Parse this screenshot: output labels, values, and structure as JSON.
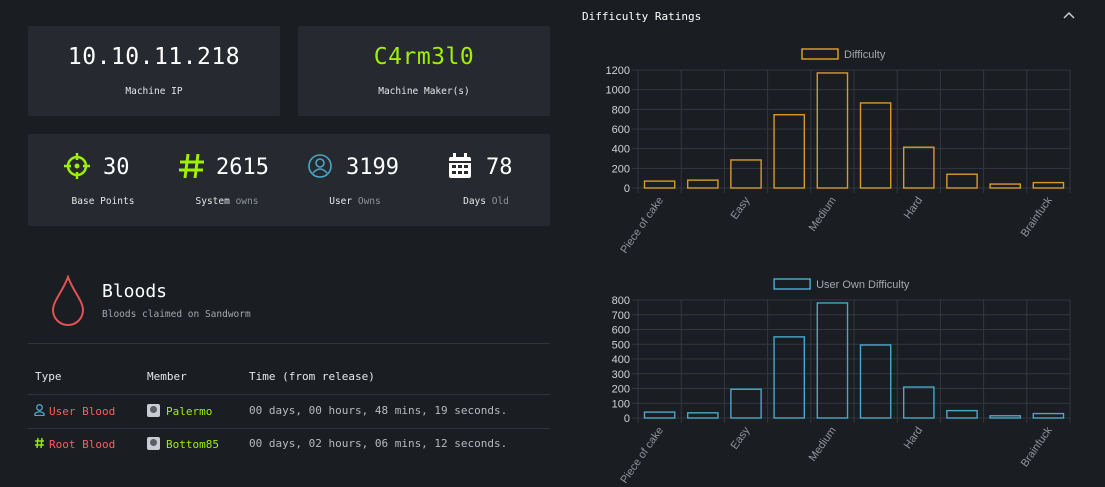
{
  "machine": {
    "ip": "10.10.11.218",
    "ip_label": "Machine IP",
    "maker": "C4rm3l0",
    "maker_label": "Machine Maker(s)"
  },
  "stats": {
    "base_points": {
      "value": "30",
      "label": "Base Points"
    },
    "system": {
      "value": "2615",
      "label": "System",
      "sub": "owns"
    },
    "user": {
      "value": "3199",
      "label": "User",
      "sub": "Owns"
    },
    "days": {
      "value": "78",
      "label": "Days",
      "sub": "Old"
    }
  },
  "bloods": {
    "title": "Bloods",
    "subtitle": "Bloods claimed on Sandworm",
    "columns": [
      "Type",
      "Member",
      "Time (from release)"
    ],
    "rows": [
      {
        "type": "User Blood",
        "member": "Palermo",
        "time": "00 days, 00 hours, 48 mins, 19 seconds."
      },
      {
        "type": "Root Blood",
        "member": "Bottom85",
        "time": "00 days, 02 hours, 06 mins, 12 seconds."
      }
    ]
  },
  "difficulty_panel": {
    "title": "Difficulty Ratings",
    "collapse_icon": "chevron-up-icon"
  },
  "colors": {
    "accent_green": "#9fef00",
    "blood_red": "#ff5c5c",
    "difficulty_series": "#d59c2c",
    "user_series": "#4aa7c9"
  },
  "chart_data": [
    {
      "type": "bar",
      "legend": "Difficulty",
      "categories": [
        "Piece of cake",
        "",
        "Easy",
        "",
        "Medium",
        "",
        "Hard",
        "",
        "",
        "Brainfuck"
      ],
      "values": [
        70,
        80,
        285,
        745,
        1170,
        865,
        415,
        140,
        40,
        55
      ],
      "yticks": [
        0,
        200,
        400,
        600,
        800,
        1000,
        1200
      ],
      "ylim": [
        0,
        1200
      ],
      "grid": true,
      "legend_position": "top"
    },
    {
      "type": "bar",
      "legend": "User Own Difficulty",
      "categories": [
        "Piece of cake",
        "",
        "Easy",
        "",
        "Medium",
        "",
        "Hard",
        "",
        "",
        "Brainfuck"
      ],
      "values": [
        40,
        35,
        195,
        550,
        780,
        495,
        210,
        50,
        15,
        30
      ],
      "yticks": [
        0,
        100,
        200,
        300,
        400,
        500,
        600,
        700,
        800
      ],
      "ylim": [
        0,
        800
      ],
      "grid": true,
      "legend_position": "top"
    }
  ]
}
